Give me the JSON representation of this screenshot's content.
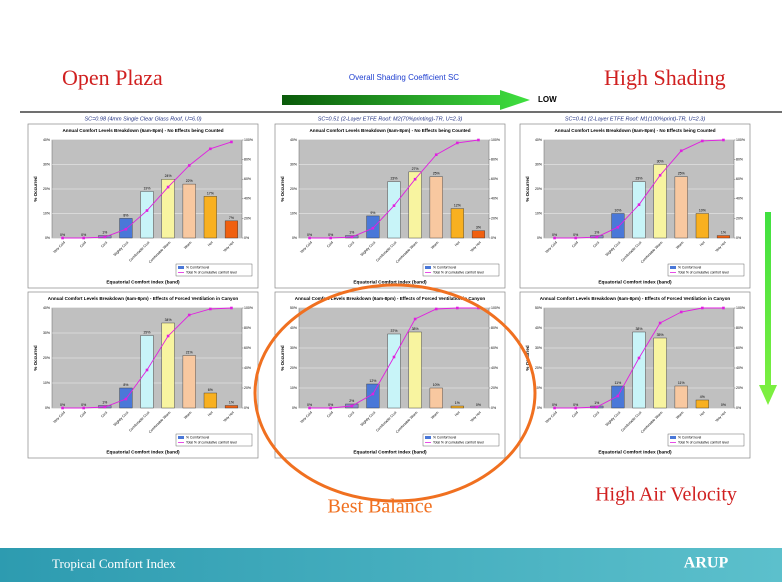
{
  "slide": {
    "left_label": "Open Plaza",
    "right_label": "High Shading",
    "arrow_label": "Overall Shading Coefficient SC",
    "arrow_end_label": "LOW",
    "highlight_label": "Best Balance",
    "bottom_right_label": "High Air Velocity",
    "footer": "Tropical Comfort Index",
    "logo": "ARUP"
  },
  "chart_data": [
    {
      "type": "bar",
      "subtitle": "SC=0.98 (4mm Single Clear Glass Roof, U=6.0)",
      "title": "Annual Comfort Levels Breakdown (6am-8pm) - No Effects being Counted",
      "xlabel": "Equatorial Comfort Index (band)",
      "ylabel": "% Occurred",
      "categories": [
        "Very Cold",
        "Cold",
        "Cool",
        "Slightly Cool",
        "Comfortable Cool",
        "Comfortable Warm",
        "Warm",
        "Hot",
        "Very Hot"
      ],
      "series": [
        {
          "name": "% Comfort level",
          "colors": [
            "#8888c8",
            "#8888c8",
            "#8888c8",
            "#4a78d8",
            "#c8f4f8",
            "#f8f4a0",
            "#f8c8a0",
            "#f8b020",
            "#f06010"
          ],
          "values": [
            0,
            0,
            1,
            8,
            19,
            24,
            22,
            17,
            7
          ],
          "value_labels": [
            "0%",
            "0%",
            "1%",
            "8%",
            "19%",
            "24%",
            "22%",
            "17%",
            "7%"
          ]
        },
        {
          "name": "Total % of cumulative comfort level",
          "color": "#e020e0",
          "axis": "y2",
          "values": [
            0,
            0,
            1,
            9,
            28,
            52,
            74,
            91,
            98
          ]
        }
      ],
      "ylim": [
        0,
        40
      ],
      "yticks": [
        {
          "value": 0,
          "label": "0%"
        },
        {
          "value": 10,
          "label": "10%"
        },
        {
          "value": 20,
          "label": "20%"
        },
        {
          "value": 30,
          "label": "30%"
        },
        {
          "value": 40,
          "label": "40%"
        }
      ],
      "y2lim": [
        0,
        100
      ],
      "y2ticks": [
        {
          "value": 0,
          "label": "0%"
        },
        {
          "value": 20,
          "label": "20%"
        },
        {
          "value": 40,
          "label": "40%"
        },
        {
          "value": 60,
          "label": "60%"
        },
        {
          "value": 80,
          "label": "80%"
        },
        {
          "value": 100,
          "label": "100%"
        }
      ],
      "grid": true
    },
    {
      "type": "bar",
      "subtitle": "SC=0.51 (2-Layer ETFE Roof: M2(70%printing)-TR, U=2.3)",
      "title": "Annual Comfort Levels Breakdown (6am-8pm) - No Effects being Counted",
      "xlabel": "Equatorial Comfort Index (band)",
      "ylabel": "% Occurred",
      "categories": [
        "Very Cold",
        "Cold",
        "Cool",
        "Slightly Cool",
        "Comfortable Cool",
        "Comfortable Warm",
        "Warm",
        "Hot",
        "Very Hot"
      ],
      "series": [
        {
          "name": "% Comfort level",
          "colors": [
            "#8888c8",
            "#8888c8",
            "#8888c8",
            "#4a78d8",
            "#c8f4f8",
            "#f8f4a0",
            "#f8c8a0",
            "#f8b020",
            "#f06010"
          ],
          "values": [
            0,
            0,
            1,
            9,
            23,
            27,
            25,
            12,
            3
          ],
          "value_labels": [
            "0%",
            "0%",
            "1%",
            "9%",
            "23%",
            "27%",
            "25%",
            "12%",
            "3%"
          ]
        },
        {
          "name": "Total % of cumulative comfort level",
          "color": "#e020e0",
          "axis": "y2",
          "values": [
            0,
            0,
            1,
            10,
            33,
            60,
            85,
            97,
            100
          ]
        }
      ],
      "ylim": [
        0,
        40
      ],
      "yticks": [
        {
          "value": 0,
          "label": "0%"
        },
        {
          "value": 10,
          "label": "10%"
        },
        {
          "value": 20,
          "label": "20%"
        },
        {
          "value": 30,
          "label": "30%"
        },
        {
          "value": 40,
          "label": "40%"
        }
      ],
      "y2lim": [
        0,
        100
      ],
      "y2ticks": [
        {
          "value": 0,
          "label": "0%"
        },
        {
          "value": 20,
          "label": "20%"
        },
        {
          "value": 40,
          "label": "40%"
        },
        {
          "value": 60,
          "label": "60%"
        },
        {
          "value": 80,
          "label": "80%"
        },
        {
          "value": 100,
          "label": "100%"
        }
      ],
      "grid": true
    },
    {
      "type": "bar",
      "subtitle": "SC=0.41 (2-Layer ETFE Roof: M1(100%print)-TR, U=2.3)",
      "title": "Annual Comfort Levels Breakdown (6am-8pm) - No Effects being Counted",
      "xlabel": "Equatorial Comfort Index (band)",
      "ylabel": "% Occurred",
      "categories": [
        "Very Cold",
        "Cold",
        "Cool",
        "Slightly Cool",
        "Comfortable Cool",
        "Comfortable Warm",
        "Warm",
        "Hot",
        "Very Hot"
      ],
      "series": [
        {
          "name": "% Comfort level",
          "colors": [
            "#8888c8",
            "#8888c8",
            "#8888c8",
            "#4a78d8",
            "#c8f4f8",
            "#f8f4a0",
            "#f8c8a0",
            "#f8b020",
            "#f06010"
          ],
          "values": [
            0,
            0,
            1,
            10,
            23,
            30,
            25,
            10,
            1
          ],
          "value_labels": [
            "0%",
            "0%",
            "1%",
            "10%",
            "23%",
            "30%",
            "25%",
            "10%",
            "1%"
          ]
        },
        {
          "name": "Total % of cumulative comfort level",
          "color": "#e020e0",
          "axis": "y2",
          "values": [
            0,
            0,
            1,
            11,
            34,
            64,
            89,
            99,
            100
          ]
        }
      ],
      "ylim": [
        0,
        40
      ],
      "yticks": [
        {
          "value": 0,
          "label": "0%"
        },
        {
          "value": 10,
          "label": "10%"
        },
        {
          "value": 20,
          "label": "20%"
        },
        {
          "value": 30,
          "label": "30%"
        },
        {
          "value": 40,
          "label": "40%"
        }
      ],
      "y2lim": [
        0,
        100
      ],
      "y2ticks": [
        {
          "value": 0,
          "label": "0%"
        },
        {
          "value": 20,
          "label": "20%"
        },
        {
          "value": 40,
          "label": "40%"
        },
        {
          "value": 60,
          "label": "60%"
        },
        {
          "value": 80,
          "label": "80%"
        },
        {
          "value": 100,
          "label": "100%"
        }
      ],
      "grid": true
    },
    {
      "type": "bar",
      "title": "Annual Comfort Levels Breakdown (6am-8pm) - Effects of Forced Ventilation in Canyon",
      "xlabel": "Equatorial Comfort Index (band)",
      "ylabel": "% Occurred",
      "categories": [
        "Very Cold",
        "Cold",
        "Cool",
        "Slightly Cool",
        "Comfortable Cool",
        "Comfortable Warm",
        "Warm",
        "Hot",
        "Very Hot"
      ],
      "series": [
        {
          "name": "% Comfort level",
          "colors": [
            "#8888c8",
            "#8888c8",
            "#8888c8",
            "#4a78d8",
            "#c8f4f8",
            "#f8f4a0",
            "#f8c8a0",
            "#f8b020",
            "#f06010"
          ],
          "values": [
            0,
            0,
            1,
            8,
            29,
            34,
            21,
            6,
            1
          ],
          "value_labels": [
            "0%",
            "0%",
            "1%",
            "8%",
            "29%",
            "34%",
            "21%",
            "6%",
            "1%"
          ]
        },
        {
          "name": "Total % of cumulative comfort level",
          "color": "#e020e0",
          "axis": "y2",
          "values": [
            0,
            0,
            1,
            9,
            38,
            72,
            93,
            99,
            100
          ]
        }
      ],
      "ylim": [
        0,
        40
      ],
      "yticks": [
        {
          "value": 0,
          "label": "0%"
        },
        {
          "value": 10,
          "label": "10%"
        },
        {
          "value": 20,
          "label": "20%"
        },
        {
          "value": 30,
          "label": "30%"
        },
        {
          "value": 40,
          "label": "40%"
        }
      ],
      "y2lim": [
        0,
        100
      ],
      "y2ticks": [
        {
          "value": 0,
          "label": "0%"
        },
        {
          "value": 20,
          "label": "20%"
        },
        {
          "value": 40,
          "label": "40%"
        },
        {
          "value": 60,
          "label": "60%"
        },
        {
          "value": 80,
          "label": "80%"
        },
        {
          "value": 100,
          "label": "100%"
        }
      ],
      "grid": true
    },
    {
      "type": "bar",
      "title": "Annual Comfort Levels Breakdown (6am-8pm) - Effects of Forced Ventilation in Canyon",
      "xlabel": "Equatorial Comfort Index (band)",
      "ylabel": "% Occurred",
      "categories": [
        "Very Cold",
        "Cold",
        "Cool",
        "Slightly Cool",
        "Comfortable Cool",
        "Comfortable Warm",
        "Warm",
        "Hot",
        "Very Hot"
      ],
      "series": [
        {
          "name": "% Comfort level",
          "colors": [
            "#8888c8",
            "#8888c8",
            "#8888c8",
            "#4a78d8",
            "#c8f4f8",
            "#f8f4a0",
            "#f8c8a0",
            "#f8b020",
            "#f06010"
          ],
          "values": [
            0,
            0,
            2,
            12,
            37,
            38,
            10,
            1,
            0
          ],
          "value_labels": [
            "0%",
            "0%",
            "2%",
            "12%",
            "37%",
            "38%",
            "10%",
            "1%",
            "0%"
          ]
        },
        {
          "name": "Total % of cumulative comfort level",
          "color": "#e020e0",
          "axis": "y2",
          "values": [
            0,
            0,
            2,
            14,
            51,
            89,
            99,
            100,
            100
          ]
        }
      ],
      "ylim": [
        0,
        50
      ],
      "yticks": [
        {
          "value": 0,
          "label": "0%"
        },
        {
          "value": 10,
          "label": "10%"
        },
        {
          "value": 20,
          "label": "20%"
        },
        {
          "value": 30,
          "label": "30%"
        },
        {
          "value": 40,
          "label": "40%"
        },
        {
          "value": 50,
          "label": "50%"
        }
      ],
      "y2lim": [
        0,
        100
      ],
      "y2ticks": [
        {
          "value": 0,
          "label": "0%"
        },
        {
          "value": 20,
          "label": "20%"
        },
        {
          "value": 40,
          "label": "40%"
        },
        {
          "value": 60,
          "label": "60%"
        },
        {
          "value": 80,
          "label": "80%"
        },
        {
          "value": 100,
          "label": "100%"
        }
      ],
      "grid": true
    },
    {
      "type": "bar",
      "title": "Annual Comfort Levels Breakdown (6am-8pm) - Effects of Forced Ventilation in Canyon",
      "xlabel": "Equatorial Comfort Index (band)",
      "ylabel": "% Occurred",
      "categories": [
        "Very Cold",
        "Cold",
        "Cool",
        "Slightly Cool",
        "Comfortable Cool",
        "Comfortable Warm",
        "Warm",
        "Hot",
        "Very Hot"
      ],
      "series": [
        {
          "name": "% Comfort level",
          "colors": [
            "#8888c8",
            "#8888c8",
            "#8888c8",
            "#4a78d8",
            "#c8f4f8",
            "#f8f4a0",
            "#f8c8a0",
            "#f8b020",
            "#f06010"
          ],
          "values": [
            0,
            0,
            1,
            11,
            38,
            35,
            11,
            4,
            0
          ],
          "value_labels": [
            "0%",
            "0%",
            "1%",
            "11%",
            "38%",
            "35%",
            "11%",
            "4%",
            "0%"
          ]
        },
        {
          "name": "Total % of cumulative comfort level",
          "color": "#e020e0",
          "axis": "y2",
          "values": [
            0,
            0,
            1,
            12,
            50,
            85,
            96,
            100,
            100
          ]
        }
      ],
      "ylim": [
        0,
        50
      ],
      "yticks": [
        {
          "value": 0,
          "label": "0%"
        },
        {
          "value": 10,
          "label": "10%"
        },
        {
          "value": 20,
          "label": "20%"
        },
        {
          "value": 30,
          "label": "30%"
        },
        {
          "value": 40,
          "label": "40%"
        },
        {
          "value": 50,
          "label": "50%"
        }
      ],
      "y2lim": [
        0,
        100
      ],
      "y2ticks": [
        {
          "value": 0,
          "label": "0%"
        },
        {
          "value": 20,
          "label": "20%"
        },
        {
          "value": 40,
          "label": "40%"
        },
        {
          "value": 60,
          "label": "60%"
        },
        {
          "value": 80,
          "label": "80%"
        },
        {
          "value": 100,
          "label": "100%"
        }
      ],
      "grid": true
    }
  ]
}
